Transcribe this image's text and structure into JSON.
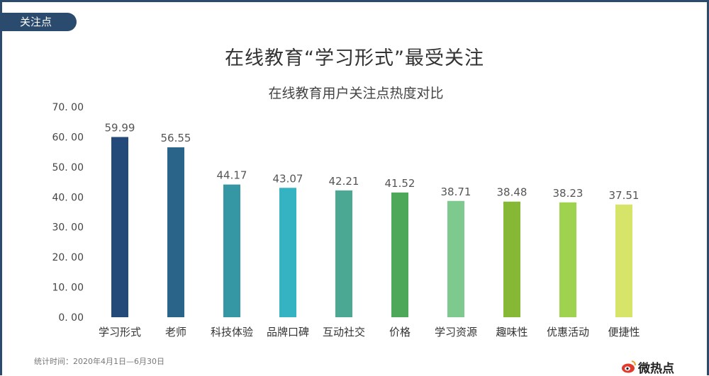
{
  "header": {
    "tag_label": "关注点"
  },
  "page_title": "在线教育“学习形式”最受关注",
  "footnote": "统计时间：2020年4月1日—6月30日",
  "logo": {
    "text": "微热点",
    "icon": "weibo-eye-icon"
  },
  "colors": {
    "frame": "#2a4a6e",
    "bars": [
      "#244a7a",
      "#2a6488",
      "#3596a4",
      "#35b3c2",
      "#4aa893",
      "#4ea85a",
      "#7ec98d",
      "#86b836",
      "#9fd24e",
      "#d6e46a"
    ]
  },
  "chart_data": {
    "type": "bar",
    "title": "在线教育用户关注点热度对比",
    "xlabel": "",
    "ylabel": "",
    "categories": [
      "学习形式",
      "老师",
      "科技体验",
      "品牌口碑",
      "互动社交",
      "价格",
      "学习资源",
      "趣味性",
      "优惠活动",
      "便捷性"
    ],
    "values": [
      59.99,
      56.55,
      44.17,
      43.07,
      42.21,
      41.52,
      38.71,
      38.48,
      38.23,
      37.51
    ],
    "value_labels": [
      "59.99",
      "56.55",
      "44.17",
      "43.07",
      "42.21",
      "41.52",
      "38.71",
      "38.48",
      "38.23",
      "37.51"
    ],
    "ylim": [
      0,
      70
    ],
    "yticks": [
      0,
      10,
      20,
      30,
      40,
      50,
      60,
      70
    ],
    "ytick_labels": [
      "0. 00",
      "10. 00",
      "20. 00",
      "30. 00",
      "40. 00",
      "50. 00",
      "60. 00",
      "70. 00"
    ],
    "grid": false,
    "legend": "none"
  }
}
